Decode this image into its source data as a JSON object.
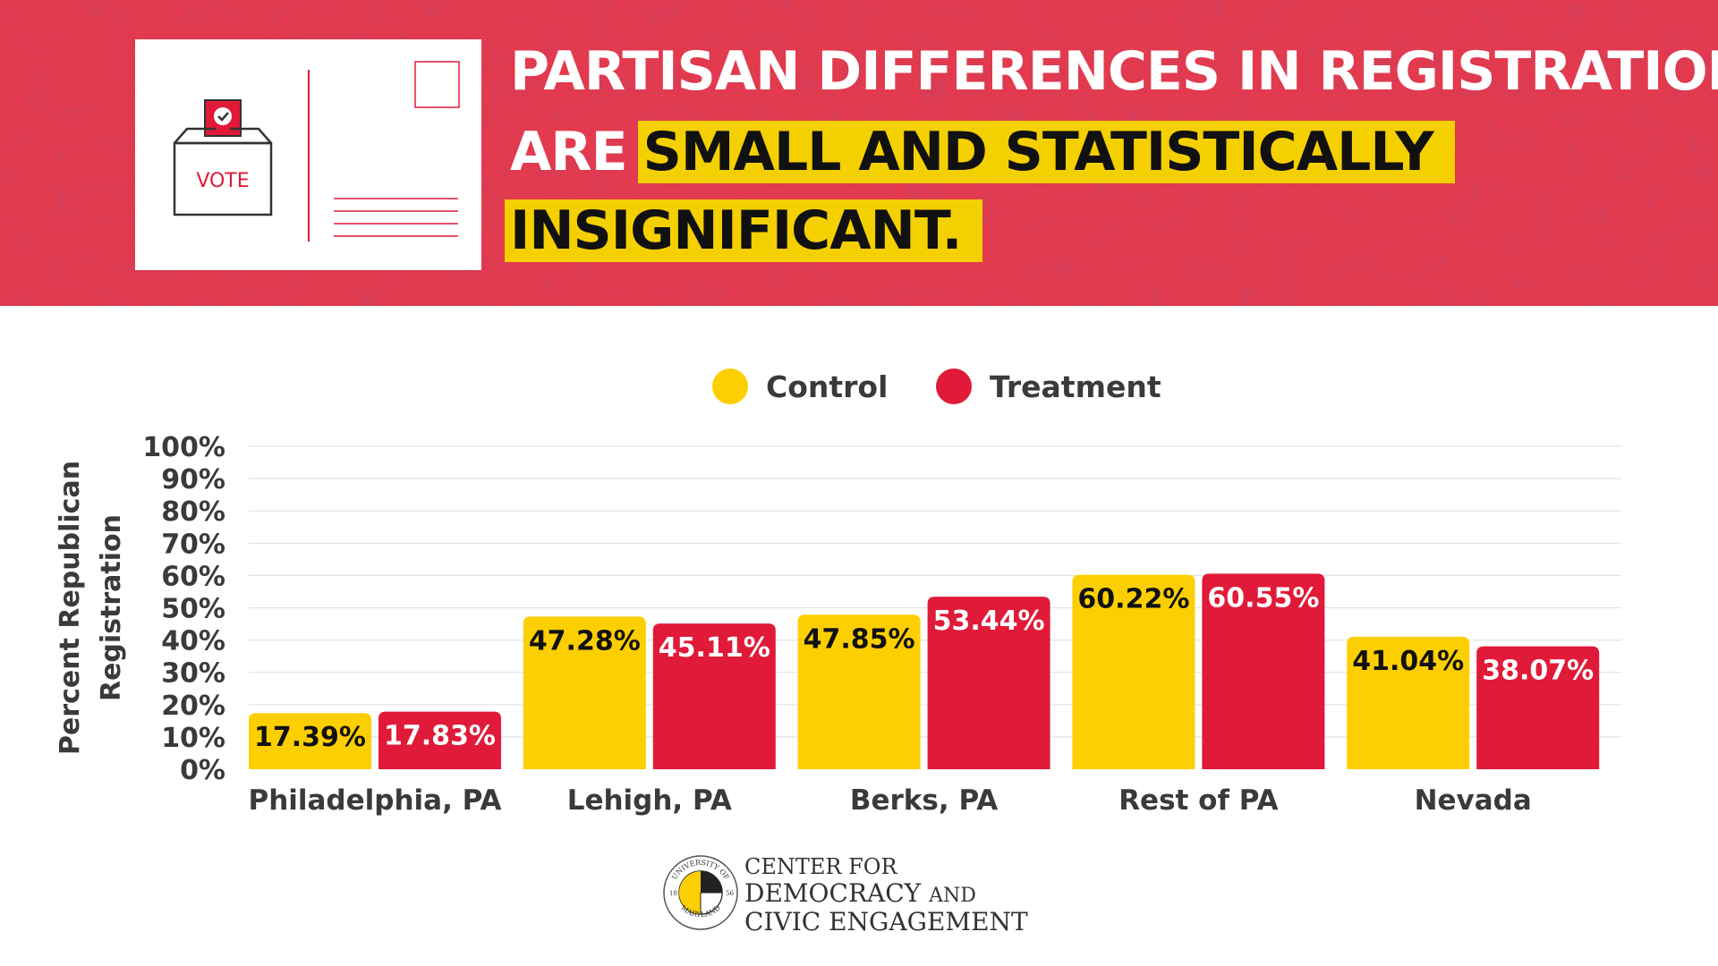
{
  "colors": {
    "banner": "#e23a4e",
    "control": "#fecf00",
    "treatment": "#e01a38",
    "highlight": "#f5d000",
    "text": "#3a3a3a"
  },
  "header": {
    "line1": "PARTISAN DIFFERENCES IN REGISTRATION",
    "line2_prefix": "ARE",
    "line2_highlight": "SMALL AND STATISTICALLY",
    "line3_highlight": "INSIGNIFICANT."
  },
  "postcard": {
    "ballot_label": "VOTE",
    "icon": "ballot-box-icon"
  },
  "chart_data": {
    "type": "bar",
    "title": "",
    "xlabel": "",
    "ylabel": "Percent Republican Registration",
    "ylabel_lines": [
      "Percent Republican",
      "Registration"
    ],
    "ylim": [
      0,
      100
    ],
    "y_ticks": [
      "0%",
      "10%",
      "20%",
      "30%",
      "40%",
      "50%",
      "60%",
      "70%",
      "80%",
      "90%",
      "100%"
    ],
    "grid": true,
    "legend_position": "top-center",
    "categories": [
      "Philadelphia, PA",
      "Lehigh, PA",
      "Berks, PA",
      "Rest of PA",
      "Nevada"
    ],
    "series": [
      {
        "name": "Control",
        "color": "#fecf00",
        "values": [
          17.39,
          47.28,
          47.85,
          60.22,
          41.04
        ],
        "labels": [
          "17.39%",
          "47.28%",
          "47.85%",
          "60.22%",
          "41.04%"
        ]
      },
      {
        "name": "Treatment",
        "color": "#e01a38",
        "values": [
          17.83,
          45.11,
          53.44,
          60.55,
          38.07
        ],
        "labels": [
          "17.83%",
          "45.11%",
          "53.44%",
          "60.55%",
          "38.07%"
        ]
      }
    ]
  },
  "footer": {
    "org_line1": "CENTER FOR",
    "org_line2_a": "DEMOCRACY",
    "org_line2_b": "AND",
    "org_line3": "CIVIC ENGAGEMENT",
    "seal_text_top": "UNIVERSITY OF",
    "seal_text_bottom": "MARYLAND",
    "seal_year_left": "18",
    "seal_year_right": "56"
  }
}
